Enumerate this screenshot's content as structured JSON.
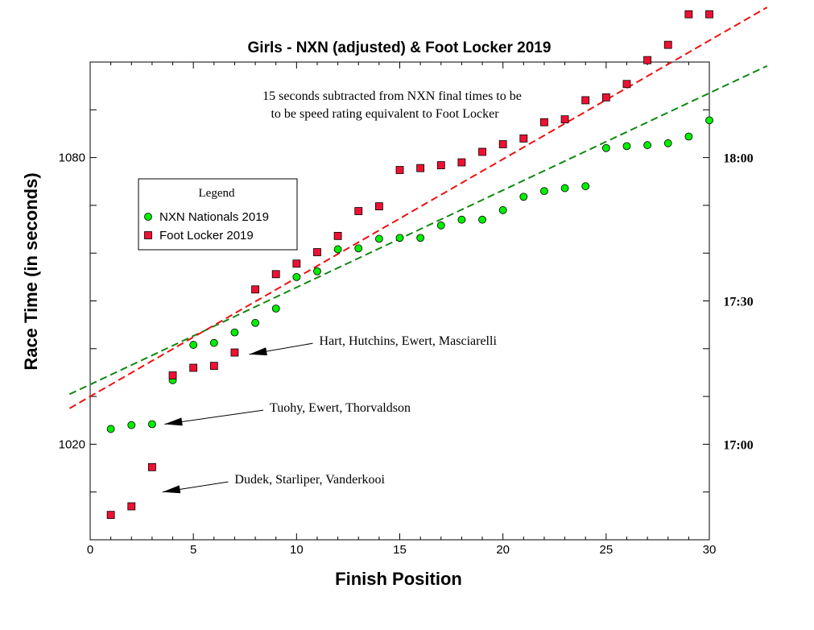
{
  "chart_data": {
    "type": "scatter",
    "title": "Girls - NXN (adjusted) & Foot Locker 2019",
    "xlabel": "Finish Position",
    "ylabel": "Race Time (in seconds)",
    "xlim": [
      0,
      30
    ],
    "ylim": [
      1000,
      1100
    ],
    "x_ticks": [
      "0",
      "5",
      "10",
      "15",
      "20",
      "25",
      "30"
    ],
    "y_ticks_left": [
      "1020",
      "1080"
    ],
    "y_ticks_right": [
      "17:00",
      "17:30",
      "18:00"
    ],
    "note_lines": [
      "15 seconds subtracted from NXN final times to be",
      "to be speed rating equivalent to Foot Locker"
    ],
    "legend": {
      "title": "Legend",
      "position": "upper-left"
    },
    "series": [
      {
        "name": "NXN Nationals 2019",
        "marker": "circle",
        "color": "#00ee00",
        "trend_color": "#118811",
        "trend": [
          1032.5,
          1093.5
        ],
        "x": [
          1,
          2,
          3,
          4,
          5,
          6,
          7,
          8,
          9,
          10,
          11,
          12,
          13,
          14,
          15,
          16,
          17,
          18,
          19,
          20,
          21,
          22,
          23,
          24,
          25,
          26,
          27,
          28,
          29,
          30
        ],
        "values": [
          1023.2,
          1024.0,
          1024.2,
          1033.4,
          1040.8,
          1041.2,
          1043.4,
          1045.4,
          1048.4,
          1055.0,
          1056.2,
          1060.8,
          1061.0,
          1063.0,
          1063.2,
          1063.2,
          1065.8,
          1067.0,
          1067.0,
          1069.0,
          1071.8,
          1073.0,
          1073.6,
          1074.0,
          1082.0,
          1082.4,
          1082.6,
          1083.0,
          1084.4,
          1087.8
        ]
      },
      {
        "name": "Foot Locker 2019",
        "marker": "square",
        "color": "#ee1133",
        "trend_color": "#ee1111",
        "trend": [
          1030.0,
          1104.5
        ],
        "x": [
          1,
          2,
          3,
          4,
          5,
          6,
          7,
          8,
          9,
          10,
          11,
          12,
          13,
          14,
          15,
          16,
          17,
          18,
          19,
          20,
          21,
          22,
          23,
          24,
          25,
          26,
          27,
          28,
          29,
          30
        ],
        "values": [
          1005.2,
          1007.0,
          1015.2,
          1034.4,
          1036.0,
          1036.4,
          1039.2,
          1052.4,
          1055.6,
          1057.8,
          1060.2,
          1063.6,
          1068.8,
          1069.8,
          1077.4,
          1077.8,
          1078.4,
          1079.0,
          1081.2,
          1082.8,
          1084.0,
          1087.4,
          1088.0,
          1092.0,
          1092.6,
          1095.4,
          1100.4,
          1103.6,
          1110.0,
          1110.0
        ]
      }
    ],
    "annotations": [
      {
        "text": "Hart, Hutchins, Ewert, Masciarelli",
        "target_x": 7.7,
        "target_y": 1038.8,
        "text_x": 11.1,
        "text_y": 1041.8
      },
      {
        "text": "Tuohy, Ewert, Thorvaldson",
        "target_x": 3.6,
        "target_y": 1024.2,
        "text_x": 8.7,
        "text_y": 1027.8
      },
      {
        "text": "Dudek, Starliper, Vanderkooi",
        "target_x": 3.5,
        "target_y": 1010.0,
        "text_x": 7.0,
        "text_y": 1012.8
      }
    ]
  }
}
